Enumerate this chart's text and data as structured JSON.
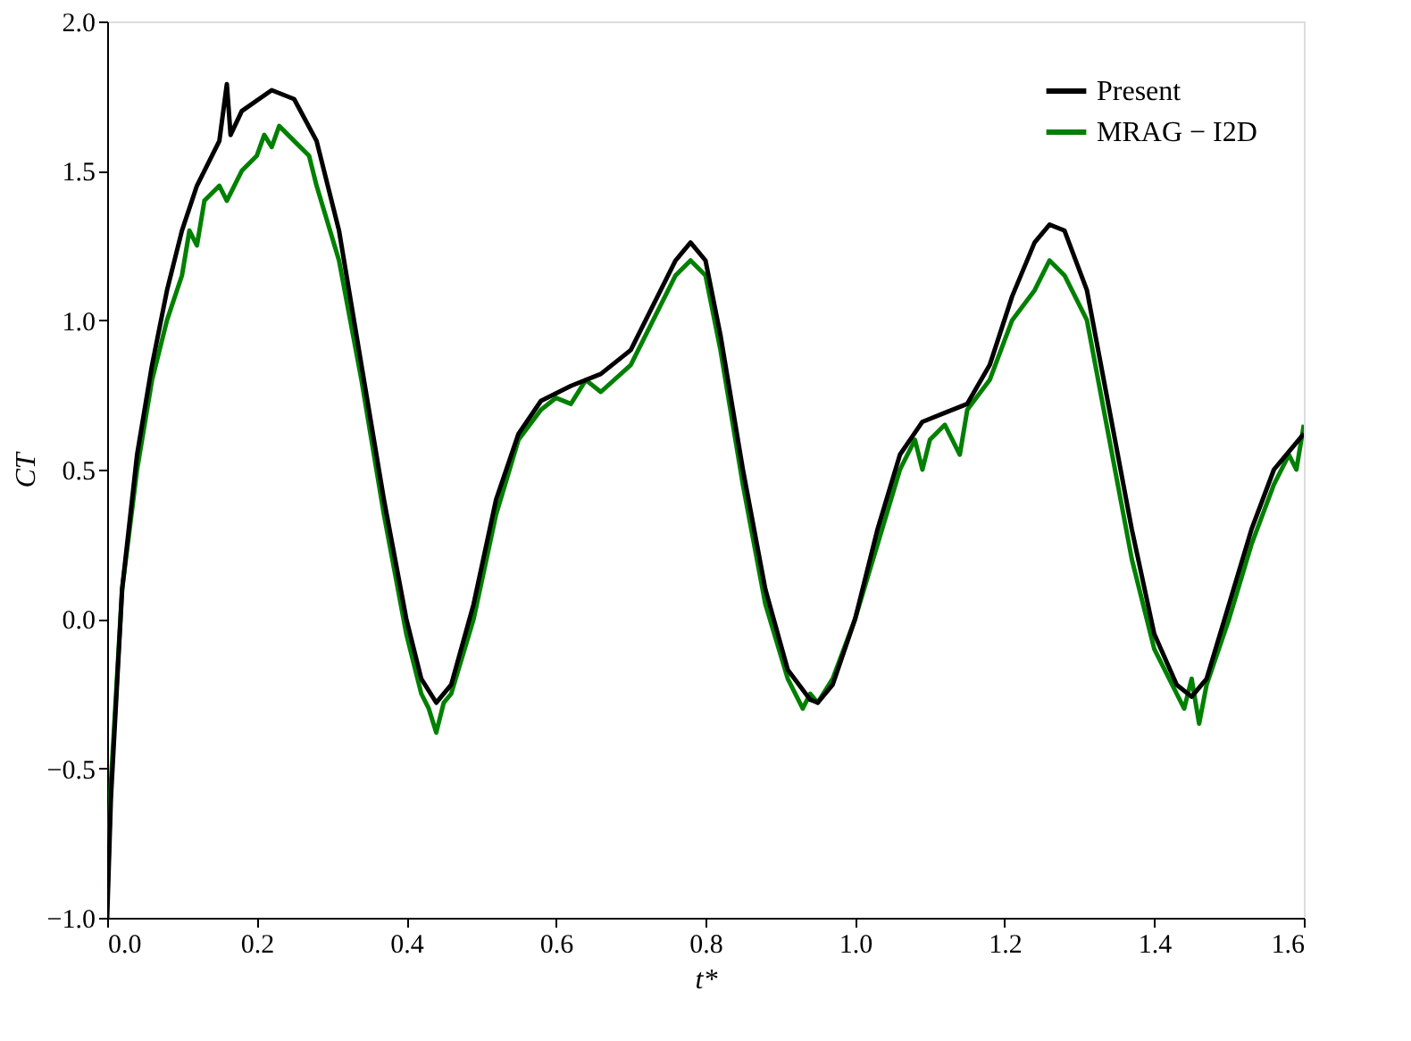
{
  "chart_data": {
    "type": "line",
    "xlabel": "t*",
    "ylabel": "CT",
    "xlim": [
      0,
      1.6
    ],
    "ylim": [
      -1.0,
      2.0
    ],
    "xticks": [
      {
        "value": 0,
        "label": "0.0"
      },
      0.2,
      0.4,
      0.6,
      0.8,
      {
        "value": 1,
        "label": "1.0"
      },
      1.2,
      1.4,
      1.6
    ],
    "yticks": [
      {
        "value": -1,
        "label": "−1.0"
      },
      -0.5,
      {
        "value": 0,
        "label": "0.0"
      },
      0.5,
      {
        "value": 1,
        "label": "1.0"
      },
      1.5,
      {
        "value": 2,
        "label": "2.0"
      }
    ],
    "grid": false,
    "legend": "top right",
    "line_style": "solid",
    "marker": "none",
    "series": [
      {
        "name": "MRAG − I2D",
        "color": "#008000",
        "x": [
          0,
          0.005,
          0.02,
          0.04,
          0.06,
          0.08,
          0.1,
          0.11,
          0.12,
          0.13,
          0.15,
          0.16,
          0.18,
          0.2,
          0.21,
          0.22,
          0.23,
          0.25,
          0.27,
          0.28,
          0.31,
          0.34,
          0.37,
          0.4,
          0.42,
          0.43,
          0.44,
          0.45,
          0.46,
          0.49,
          0.52,
          0.55,
          0.58,
          0.6,
          0.62,
          0.64,
          0.66,
          0.7,
          0.73,
          0.76,
          0.78,
          0.8,
          0.82,
          0.85,
          0.88,
          0.91,
          0.93,
          0.94,
          0.95,
          0.97,
          1.0,
          1.03,
          1.06,
          1.08,
          1.09,
          1.1,
          1.12,
          1.14,
          1.15,
          1.18,
          1.21,
          1.24,
          1.26,
          1.28,
          1.31,
          1.34,
          1.37,
          1.4,
          1.43,
          1.44,
          1.45,
          1.46,
          1.47,
          1.5,
          1.53,
          1.56,
          1.58,
          1.59,
          1.6
        ],
        "values": [
          -0.95,
          -0.55,
          0.1,
          0.5,
          0.8,
          1.0,
          1.15,
          1.3,
          1.25,
          1.4,
          1.45,
          1.4,
          1.5,
          1.55,
          1.62,
          1.58,
          1.65,
          1.6,
          1.55,
          1.45,
          1.2,
          0.8,
          0.35,
          -0.05,
          -0.25,
          -0.3,
          -0.38,
          -0.28,
          -0.25,
          0.0,
          0.35,
          0.6,
          0.7,
          0.74,
          0.72,
          0.8,
          0.76,
          0.85,
          1.0,
          1.15,
          1.2,
          1.15,
          0.9,
          0.45,
          0.05,
          -0.2,
          -0.3,
          -0.25,
          -0.28,
          -0.2,
          0.0,
          0.25,
          0.5,
          0.6,
          0.5,
          0.6,
          0.65,
          0.55,
          0.7,
          0.8,
          1.0,
          1.1,
          1.2,
          1.15,
          1.0,
          0.6,
          0.2,
          -0.1,
          -0.25,
          -0.3,
          -0.2,
          -0.35,
          -0.22,
          0.0,
          0.25,
          0.45,
          0.55,
          0.5,
          0.65
        ]
      },
      {
        "name": "Present",
        "color": "#000000",
        "x": [
          0,
          0.005,
          0.02,
          0.04,
          0.06,
          0.08,
          0.1,
          0.12,
          0.15,
          0.16,
          0.165,
          0.18,
          0.22,
          0.25,
          0.28,
          0.31,
          0.34,
          0.37,
          0.4,
          0.42,
          0.44,
          0.46,
          0.49,
          0.52,
          0.55,
          0.58,
          0.62,
          0.66,
          0.7,
          0.73,
          0.76,
          0.78,
          0.8,
          0.82,
          0.85,
          0.88,
          0.91,
          0.94,
          0.95,
          0.97,
          1.0,
          1.03,
          1.06,
          1.09,
          1.12,
          1.15,
          1.18,
          1.21,
          1.24,
          1.26,
          1.28,
          1.31,
          1.34,
          1.37,
          1.4,
          1.43,
          1.45,
          1.47,
          1.5,
          1.53,
          1.56,
          1.6
        ],
        "values": [
          -1.0,
          -0.6,
          0.1,
          0.55,
          0.85,
          1.1,
          1.3,
          1.45,
          1.6,
          1.79,
          1.62,
          1.7,
          1.77,
          1.74,
          1.6,
          1.3,
          0.85,
          0.4,
          0.0,
          -0.2,
          -0.28,
          -0.22,
          0.05,
          0.4,
          0.62,
          0.73,
          0.78,
          0.82,
          0.9,
          1.05,
          1.2,
          1.26,
          1.2,
          0.95,
          0.5,
          0.1,
          -0.17,
          -0.27,
          -0.28,
          -0.22,
          0.0,
          0.3,
          0.55,
          0.66,
          0.69,
          0.72,
          0.85,
          1.08,
          1.26,
          1.32,
          1.3,
          1.1,
          0.7,
          0.3,
          -0.05,
          -0.22,
          -0.26,
          -0.2,
          0.05,
          0.3,
          0.5,
          0.62
        ]
      }
    ]
  }
}
